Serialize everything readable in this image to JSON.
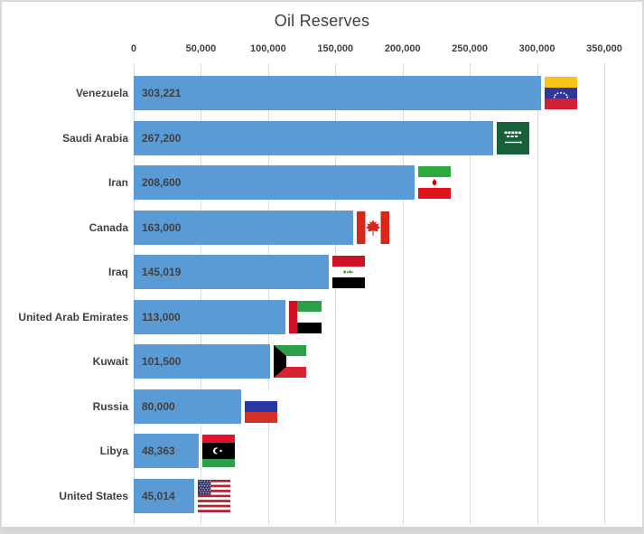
{
  "chart_data": {
    "type": "bar",
    "orientation": "horizontal",
    "title": "Oil Reserves",
    "categories": [
      "Venezuela",
      "Saudi Arabia",
      "Iran",
      "Canada",
      "Iraq",
      "United Arab Emirates",
      "Kuwait",
      "Russia",
      "Libya",
      "United States"
    ],
    "values": [
      303221,
      267200,
      208600,
      163000,
      145019,
      113000,
      101500,
      80000,
      48363,
      45014
    ],
    "value_labels": [
      "303,221",
      "267,200",
      "208,600",
      "163,000",
      "145,019",
      "113,000",
      "101,500",
      "80,000",
      "48,363",
      "45,014"
    ],
    "flags": [
      "venezuela",
      "saudi-arabia",
      "iran",
      "canada",
      "iraq",
      "united-arab-emirates",
      "kuwait",
      "russia",
      "libya",
      "united-states"
    ],
    "xlim": [
      0,
      350000
    ],
    "x_tick_interval": 50000,
    "x_tick_labels": [
      "0",
      "50,000",
      "100,000",
      "150,000",
      "200,000",
      "250,000",
      "300,000",
      "350,000"
    ],
    "axis_position": "top",
    "grid": true,
    "legend": false,
    "bar_color": "#5B9BD5",
    "text_color": "#404040",
    "gridline_color": "#D9D9D9"
  },
  "window": {
    "background": "#FFFFFF",
    "border_color": "#D9D9D9",
    "bottom_edge_color": "#D4D4D4"
  }
}
